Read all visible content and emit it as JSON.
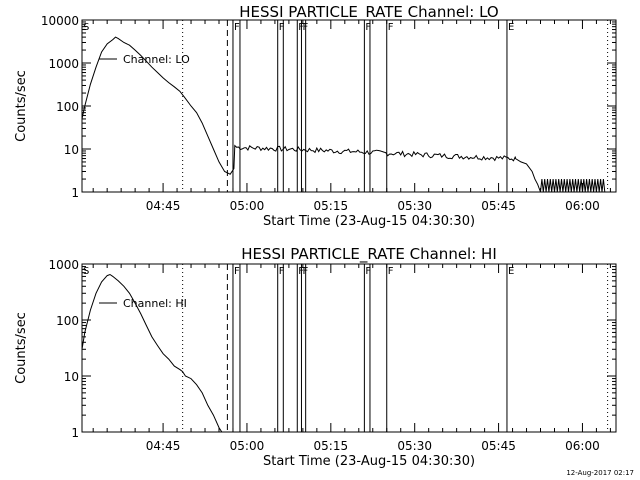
{
  "footer_timestamp": "12-Aug-2017 02:17",
  "chart_data": [
    {
      "type": "line",
      "title": "HESSI PARTICLE_RATE Channel: LO",
      "xlabel": "Start Time (23-Aug-15 04:30:30)",
      "ylabel": "Counts/sec",
      "y_scale": "log",
      "xlim": [
        "04:30:30",
        "06:06:00"
      ],
      "ylim": [
        1,
        10000
      ],
      "x_ticks": [
        "04:45",
        "05:00",
        "05:15",
        "05:30",
        "05:45",
        "06:00"
      ],
      "y_ticks": [
        "1",
        "10",
        "100",
        "1000",
        "10000"
      ],
      "legend": {
        "placement": "top-left",
        "entries": [
          "Channel: LO"
        ]
      },
      "series": [
        {
          "name": "Channel: LO",
          "points": [
            [
              "04:30:30",
              50
            ],
            [
              "04:31:00",
              100
            ],
            [
              "04:32:00",
              320
            ],
            [
              "04:33:00",
              800
            ],
            [
              "04:34:00",
              1800
            ],
            [
              "04:35:00",
              2800
            ],
            [
              "04:36:00",
              3500
            ],
            [
              "04:36:30",
              4000
            ],
            [
              "04:37:00",
              3700
            ],
            [
              "04:38:00",
              3000
            ],
            [
              "04:39:00",
              2600
            ],
            [
              "04:40:00",
              2000
            ],
            [
              "04:41:00",
              1500
            ],
            [
              "04:42:00",
              1100
            ],
            [
              "04:43:00",
              800
            ],
            [
              "04:44:00",
              600
            ],
            [
              "04:45:00",
              450
            ],
            [
              "04:46:00",
              350
            ],
            [
              "04:47:00",
              280
            ],
            [
              "04:48:00",
              220
            ],
            [
              "04:49:00",
              150
            ],
            [
              "04:50:00",
              100
            ],
            [
              "04:51:00",
              70
            ],
            [
              "04:52:00",
              40
            ],
            [
              "04:53:00",
              20
            ],
            [
              "04:54:00",
              10
            ],
            [
              "04:55:00",
              5
            ],
            [
              "04:56:00",
              3
            ],
            [
              "04:57:00",
              2.6
            ],
            [
              "04:57:40",
              3.5
            ],
            [
              "04:57:50",
              12
            ]
          ],
          "noisy_segments": [
            {
              "start": "04:57:50",
              "end": "05:35:00",
              "from_value": 11,
              "to_value": 7
            },
            {
              "start": "05:35:00",
              "end": "05:48:00",
              "from_value": 7,
              "to_value": 6
            }
          ],
          "tail_points": [
            [
              "05:48:00",
              6
            ],
            [
              "05:49:00",
              5
            ],
            [
              "05:50:00",
              4.5
            ],
            [
              "05:51:00",
              3
            ],
            [
              "05:51:30",
              2
            ],
            [
              "05:52:00",
              1.5
            ],
            [
              "05:52:30",
              1
            ]
          ],
          "low_oscillation": {
            "start": "05:52:30",
            "end": "06:04:00",
            "low": 1,
            "high": 2
          }
        }
      ],
      "event_markers": [
        {
          "time": "04:30:30",
          "label": "S",
          "style": "solid"
        },
        {
          "time": "04:48:30",
          "label": "",
          "style": "dotted"
        },
        {
          "time": "04:56:30",
          "label": "",
          "style": "dashed"
        },
        {
          "time": "04:57:30",
          "label": "F",
          "style": "solid"
        },
        {
          "time": "04:58:45",
          "label": "",
          "style": "solid"
        },
        {
          "time": "05:05:30",
          "label": "F",
          "style": "solid"
        },
        {
          "time": "05:06:30",
          "label": "",
          "style": "solid"
        },
        {
          "time": "05:09:00",
          "label": "F",
          "style": "solid"
        },
        {
          "time": "05:09:45",
          "label": "F",
          "style": "solid"
        },
        {
          "time": "05:10:30",
          "label": "",
          "style": "solid"
        },
        {
          "time": "05:21:00",
          "label": "F",
          "style": "solid"
        },
        {
          "time": "05:22:00",
          "label": "",
          "style": "solid"
        },
        {
          "time": "05:25:00",
          "label": "F",
          "style": "solid"
        },
        {
          "time": "05:46:30",
          "label": "E",
          "style": "solid"
        },
        {
          "time": "06:04:30",
          "label": "",
          "style": "dotted"
        }
      ]
    },
    {
      "type": "line",
      "title": "HESSI PARTICLE_RATE Channel: HI",
      "xlabel": "Start Time (23-Aug-15 04:30:30)",
      "ylabel": "Counts/sec",
      "y_scale": "log",
      "xlim": [
        "04:30:30",
        "06:06:00"
      ],
      "ylim": [
        1,
        1000
      ],
      "x_ticks": [
        "04:45",
        "05:00",
        "05:15",
        "05:30",
        "05:45",
        "06:00"
      ],
      "y_ticks": [
        "1",
        "10",
        "100",
        "1000"
      ],
      "legend": {
        "placement": "top-left",
        "entries": [
          "Channel: HI"
        ]
      },
      "series": [
        {
          "name": "Channel: HI",
          "points": [
            [
              "04:30:30",
              30
            ],
            [
              "04:31:00",
              60
            ],
            [
              "04:32:00",
              150
            ],
            [
              "04:33:00",
              300
            ],
            [
              "04:34:00",
              480
            ],
            [
              "04:35:00",
              620
            ],
            [
              "04:35:30",
              650
            ],
            [
              "04:36:00",
              600
            ],
            [
              "04:37:00",
              500
            ],
            [
              "04:38:00",
              400
            ],
            [
              "04:39:00",
              300
            ],
            [
              "04:40:00",
              200
            ],
            [
              "04:41:00",
              130
            ],
            [
              "04:42:00",
              80
            ],
            [
              "04:43:00",
              50
            ],
            [
              "04:44:00",
              35
            ],
            [
              "04:45:00",
              25
            ],
            [
              "04:46:00",
              20
            ],
            [
              "04:47:00",
              15
            ],
            [
              "04:48:00",
              13
            ],
            [
              "04:48:30",
              12
            ],
            [
              "04:49:00",
              10
            ],
            [
              "04:50:00",
              9
            ],
            [
              "04:51:00",
              7
            ],
            [
              "04:52:00",
              5
            ],
            [
              "04:53:00",
              3
            ],
            [
              "04:54:00",
              2
            ],
            [
              "04:55:00",
              1.2
            ],
            [
              "04:55:30",
              1
            ]
          ]
        }
      ],
      "event_markers": [
        {
          "time": "04:30:30",
          "label": "S",
          "style": "solid"
        },
        {
          "time": "04:48:30",
          "label": "",
          "style": "dotted"
        },
        {
          "time": "04:56:30",
          "label": "",
          "style": "dashed"
        },
        {
          "time": "04:57:30",
          "label": "F",
          "style": "solid"
        },
        {
          "time": "04:58:45",
          "label": "",
          "style": "solid"
        },
        {
          "time": "05:05:30",
          "label": "F",
          "style": "solid"
        },
        {
          "time": "05:06:30",
          "label": "",
          "style": "solid"
        },
        {
          "time": "05:09:00",
          "label": "F",
          "style": "solid"
        },
        {
          "time": "05:09:45",
          "label": "F",
          "style": "solid"
        },
        {
          "time": "05:10:30",
          "label": "",
          "style": "solid"
        },
        {
          "time": "05:21:00",
          "label": "F",
          "style": "solid"
        },
        {
          "time": "05:22:00",
          "label": "",
          "style": "solid"
        },
        {
          "time": "05:25:00",
          "label": "F",
          "style": "solid"
        },
        {
          "time": "05:46:30",
          "label": "E",
          "style": "solid"
        },
        {
          "time": "06:04:30",
          "label": "",
          "style": "dotted"
        }
      ]
    }
  ]
}
